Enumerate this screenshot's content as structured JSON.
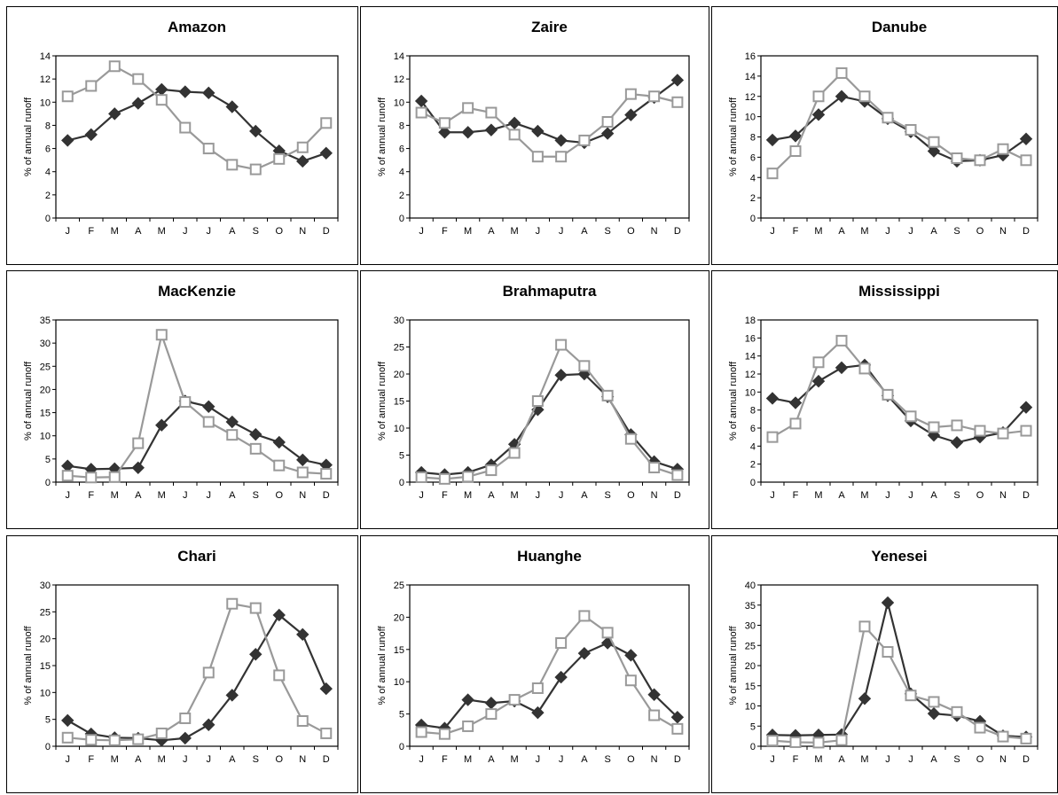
{
  "months": [
    "J",
    "F",
    "M",
    "A",
    "M",
    "J",
    "J",
    "A",
    "S",
    "O",
    "N",
    "D"
  ],
  "colors": {
    "observed": "#333333",
    "simulated": "#999999"
  },
  "chart_data": [
    {
      "type": "line",
      "title": "Amazon",
      "ylabel": "% of annual runoff",
      "ylim": [
        0,
        14
      ],
      "yticks": [
        0,
        2,
        4,
        6,
        8,
        10,
        12,
        14
      ],
      "series": [
        {
          "marker": "diamond",
          "color": "#333333",
          "values": [
            6.7,
            7.2,
            9.0,
            9.9,
            11.1,
            10.9,
            10.8,
            9.6,
            7.5,
            5.8,
            4.9,
            5.6
          ]
        },
        {
          "marker": "square",
          "color": "#999999",
          "values": [
            10.5,
            11.4,
            13.1,
            12.0,
            10.2,
            7.8,
            6.0,
            4.6,
            4.2,
            5.1,
            6.1,
            8.2
          ]
        }
      ]
    },
    {
      "type": "line",
      "title": "Zaire",
      "ylabel": "% of annual runoff",
      "ylim": [
        0,
        14
      ],
      "yticks": [
        0,
        2,
        4,
        6,
        8,
        10,
        12,
        14
      ],
      "series": [
        {
          "marker": "diamond",
          "color": "#333333",
          "values": [
            10.1,
            7.4,
            7.4,
            7.6,
            8.2,
            7.5,
            6.7,
            6.5,
            7.3,
            8.9,
            10.4,
            11.9
          ]
        },
        {
          "marker": "square",
          "color": "#999999",
          "values": [
            9.1,
            8.2,
            9.5,
            9.1,
            7.2,
            5.3,
            5.3,
            6.7,
            8.3,
            10.7,
            10.5,
            10.0
          ]
        }
      ]
    },
    {
      "type": "line",
      "title": "Danube",
      "ylabel": "% of annual runoff",
      "ylim": [
        0,
        16
      ],
      "yticks": [
        0,
        2,
        4,
        6,
        8,
        10,
        12,
        14,
        16
      ],
      "series": [
        {
          "marker": "diamond",
          "color": "#333333",
          "values": [
            7.7,
            8.1,
            10.2,
            12.0,
            11.5,
            9.8,
            8.5,
            6.6,
            5.6,
            5.7,
            6.2,
            7.8
          ]
        },
        {
          "marker": "square",
          "color": "#999999",
          "values": [
            4.4,
            6.6,
            12.0,
            14.3,
            12.0,
            9.9,
            8.7,
            7.5,
            5.9,
            5.7,
            6.8,
            5.7
          ]
        }
      ]
    },
    {
      "type": "line",
      "title": "MacKenzie",
      "ylabel": "% of annual runoff",
      "ylim": [
        0,
        35
      ],
      "yticks": [
        0,
        5,
        10,
        15,
        20,
        25,
        30,
        35
      ],
      "series": [
        {
          "marker": "diamond",
          "color": "#333333",
          "values": [
            3.5,
            2.8,
            2.9,
            3.1,
            12.3,
            17.5,
            16.3,
            13.0,
            10.3,
            8.6,
            4.8,
            3.7
          ]
        },
        {
          "marker": "square",
          "color": "#999999",
          "values": [
            1.4,
            1.0,
            1.1,
            8.4,
            31.8,
            17.3,
            13.0,
            10.2,
            7.2,
            3.6,
            2.1,
            1.8
          ]
        }
      ]
    },
    {
      "type": "line",
      "title": "Brahmaputra",
      "ylabel": "% of annual runoff",
      "ylim": [
        0,
        30
      ],
      "yticks": [
        0,
        5,
        10,
        15,
        20,
        25,
        30
      ],
      "series": [
        {
          "marker": "diamond",
          "color": "#333333",
          "values": [
            1.8,
            1.4,
            1.8,
            3.2,
            7.0,
            13.4,
            19.8,
            20.0,
            15.8,
            8.8,
            3.8,
            2.4
          ]
        },
        {
          "marker": "square",
          "color": "#999999",
          "values": [
            0.9,
            0.6,
            1.0,
            2.2,
            5.4,
            15.0,
            25.4,
            21.5,
            16.0,
            8.0,
            2.7,
            1.3
          ]
        }
      ]
    },
    {
      "type": "line",
      "title": "Mississippi",
      "ylabel": "% of annual runoff",
      "ylim": [
        0,
        18
      ],
      "yticks": [
        0,
        2,
        4,
        6,
        8,
        10,
        12,
        14,
        16,
        18
      ],
      "series": [
        {
          "marker": "diamond",
          "color": "#333333",
          "values": [
            9.3,
            8.8,
            11.2,
            12.7,
            13.0,
            9.6,
            6.8,
            5.2,
            4.4,
            5.0,
            5.5,
            8.3
          ]
        },
        {
          "marker": "square",
          "color": "#999999",
          "values": [
            5.0,
            6.5,
            13.3,
            15.7,
            12.6,
            9.7,
            7.3,
            6.1,
            6.3,
            5.7,
            5.4,
            5.7
          ]
        }
      ]
    },
    {
      "type": "line",
      "title": "Chari",
      "ylabel": "% of annual runoff",
      "ylim": [
        0,
        30
      ],
      "yticks": [
        0,
        5,
        10,
        15,
        20,
        25,
        30
      ],
      "series": [
        {
          "marker": "diamond",
          "color": "#333333",
          "values": [
            4.8,
            2.3,
            1.6,
            1.5,
            1.1,
            1.5,
            4.0,
            9.5,
            17.1,
            24.4,
            20.8,
            10.7
          ]
        },
        {
          "marker": "square",
          "color": "#999999",
          "values": [
            1.6,
            1.2,
            1.1,
            1.3,
            2.4,
            5.2,
            13.7,
            26.5,
            25.7,
            13.2,
            4.7,
            2.4
          ]
        }
      ]
    },
    {
      "type": "line",
      "title": "Huanghe",
      "ylabel": "% of annual runoff",
      "ylim": [
        0,
        25
      ],
      "yticks": [
        0,
        5,
        10,
        15,
        20,
        25
      ],
      "series": [
        {
          "marker": "diamond",
          "color": "#333333",
          "values": [
            3.3,
            2.8,
            7.2,
            6.7,
            7.0,
            5.2,
            10.7,
            14.4,
            16.0,
            14.1,
            8.0,
            4.5
          ]
        },
        {
          "marker": "square",
          "color": "#999999",
          "values": [
            2.2,
            1.9,
            3.1,
            5.0,
            7.2,
            9.0,
            16.0,
            20.2,
            17.6,
            10.2,
            4.8,
            2.7
          ]
        }
      ]
    },
    {
      "type": "line",
      "title": "Yenesei",
      "ylabel": "% of annual runoff",
      "ylim": [
        0,
        40
      ],
      "yticks": [
        0,
        5,
        10,
        15,
        20,
        25,
        30,
        35,
        40
      ],
      "series": [
        {
          "marker": "diamond",
          "color": "#333333",
          "values": [
            2.8,
            2.7,
            2.8,
            2.9,
            11.8,
            35.6,
            13.0,
            8.1,
            7.6,
            6.2,
            2.6,
            2.3
          ]
        },
        {
          "marker": "square",
          "color": "#999999",
          "values": [
            1.4,
            1.0,
            0.9,
            1.5,
            29.7,
            23.4,
            12.6,
            11.0,
            8.5,
            4.6,
            2.4,
            1.9
          ]
        }
      ]
    }
  ]
}
